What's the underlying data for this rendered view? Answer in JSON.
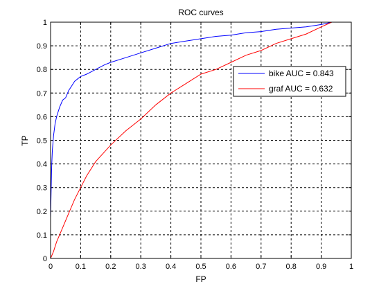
{
  "chart_data": {
    "type": "line",
    "title": "ROC curves",
    "xlabel": "FP",
    "ylabel": "TP",
    "xlim": [
      0,
      1
    ],
    "ylim": [
      0,
      1
    ],
    "xticks": [
      "0",
      "0.1",
      "0.2",
      "0.3",
      "0.4",
      "0.5",
      "0.6",
      "0.7",
      "0.8",
      "0.9",
      "1"
    ],
    "yticks": [
      "0",
      "0.1",
      "0.2",
      "0.3",
      "0.4",
      "0.5",
      "0.6",
      "0.7",
      "0.8",
      "0.9",
      "1"
    ],
    "grid": true,
    "legend_position": "right",
    "series": [
      {
        "name": "bike AUC = 0.843",
        "color": "#0000ff",
        "points": [
          [
            0.0,
            0.17
          ],
          [
            0.002,
            0.3
          ],
          [
            0.004,
            0.4
          ],
          [
            0.006,
            0.46
          ],
          [
            0.01,
            0.52
          ],
          [
            0.015,
            0.57
          ],
          [
            0.02,
            0.6
          ],
          [
            0.03,
            0.64
          ],
          [
            0.04,
            0.67
          ],
          [
            0.05,
            0.68
          ],
          [
            0.06,
            0.71
          ],
          [
            0.07,
            0.73
          ],
          [
            0.08,
            0.75
          ],
          [
            0.09,
            0.76
          ],
          [
            0.1,
            0.77
          ],
          [
            0.12,
            0.78
          ],
          [
            0.15,
            0.8
          ],
          [
            0.18,
            0.82
          ],
          [
            0.2,
            0.83
          ],
          [
            0.25,
            0.85
          ],
          [
            0.3,
            0.87
          ],
          [
            0.35,
            0.89
          ],
          [
            0.4,
            0.91
          ],
          [
            0.45,
            0.92
          ],
          [
            0.5,
            0.93
          ],
          [
            0.55,
            0.94
          ],
          [
            0.6,
            0.945
          ],
          [
            0.65,
            0.955
          ],
          [
            0.7,
            0.96
          ],
          [
            0.75,
            0.97
          ],
          [
            0.8,
            0.975
          ],
          [
            0.85,
            0.98
          ],
          [
            0.9,
            0.99
          ],
          [
            0.935,
            1.0
          ]
        ]
      },
      {
        "name": "graf AUC = 0.632",
        "color": "#ff0000",
        "points": [
          [
            0.0,
            0.0
          ],
          [
            0.01,
            0.03
          ],
          [
            0.02,
            0.07
          ],
          [
            0.03,
            0.1
          ],
          [
            0.04,
            0.13
          ],
          [
            0.05,
            0.16
          ],
          [
            0.06,
            0.19
          ],
          [
            0.08,
            0.25
          ],
          [
            0.1,
            0.3
          ],
          [
            0.12,
            0.35
          ],
          [
            0.15,
            0.41
          ],
          [
            0.2,
            0.48
          ],
          [
            0.25,
            0.54
          ],
          [
            0.3,
            0.59
          ],
          [
            0.35,
            0.65
          ],
          [
            0.4,
            0.7
          ],
          [
            0.45,
            0.74
          ],
          [
            0.5,
            0.78
          ],
          [
            0.55,
            0.8
          ],
          [
            0.6,
            0.83
          ],
          [
            0.65,
            0.86
          ],
          [
            0.7,
            0.88
          ],
          [
            0.75,
            0.91
          ],
          [
            0.8,
            0.93
          ],
          [
            0.85,
            0.95
          ],
          [
            0.9,
            0.98
          ],
          [
            0.935,
            1.0
          ]
        ]
      }
    ]
  }
}
